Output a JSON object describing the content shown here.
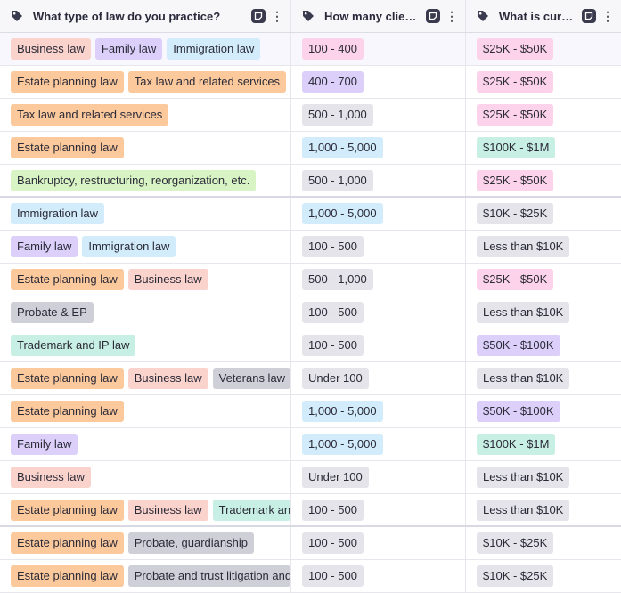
{
  "columns": [
    {
      "title": "What type of law do you practice?",
      "icon": "tag-icon"
    },
    {
      "title": "How many clients…",
      "icon": "tag-icon"
    },
    {
      "title": "What is curre…",
      "icon": "tag-icon"
    }
  ],
  "tag_colors": {
    "Business law": "#fbd3cd",
    "Family law": "#dcd0fa",
    "Immigration law": "#d3ecfb",
    "Estate planning law": "#fcc99c",
    "Tax law and related services": "#fcc99c",
    "Bankruptcy, restructuring, reorganization, etc.": "#d8f4c4",
    "Probate & EP": "#cfcfd8",
    "Trademark and IP law": "#c7efe4",
    "Veterans law": "#cfcfd8",
    "Trademark and IP law (truncated)": "#c7efe4",
    "Probate, guardianship": "#cfcfd8",
    "Probate and trust litigation and": "#cfcfd8",
    "100 - 400": "#fcd3ea",
    "400 - 700": "#dcd0fa",
    "500 - 1,000": "#e4e4ea",
    "1,000 - 5,000": "#d3ecfb",
    "100 - 500": "#e4e4ea",
    "Under 100": "#e4e4ea",
    "$25K - $50K": "#fcd3ea",
    "$100K - $1M": "#c7efe4",
    "$10K - $25K": "#e4e4ea",
    "Less than $10K": "#e4e4ea",
    "$50K - $100K": "#dcd0fa"
  },
  "rows": [
    [
      [
        "Business law",
        "Family law",
        "Immigration law"
      ],
      [
        "100 - 400"
      ],
      [
        "$25K - $50K"
      ]
    ],
    [
      [
        "Estate planning law",
        "Tax law and related services"
      ],
      [
        "400 - 700"
      ],
      [
        "$25K - $50K"
      ]
    ],
    [
      [
        "Tax law and related services"
      ],
      [
        "500 - 1,000"
      ],
      [
        "$25K - $50K"
      ]
    ],
    [
      [
        "Estate planning law"
      ],
      [
        "1,000 - 5,000"
      ],
      [
        "$100K - $1M"
      ]
    ],
    [
      [
        "Bankruptcy, restructuring, reorganization, etc."
      ],
      [
        "500 - 1,000"
      ],
      [
        "$25K - $50K"
      ]
    ],
    [
      [
        "Immigration law"
      ],
      [
        "1,000 - 5,000"
      ],
      [
        "$10K - $25K"
      ]
    ],
    [
      [
        "Family law",
        "Immigration law"
      ],
      [
        "100 - 500"
      ],
      [
        "Less than $10K"
      ]
    ],
    [
      [
        "Estate planning law",
        "Business law"
      ],
      [
        "500 - 1,000"
      ],
      [
        "$25K - $50K"
      ]
    ],
    [
      [
        "Probate & EP"
      ],
      [
        "100 - 500"
      ],
      [
        "Less than $10K"
      ]
    ],
    [
      [
        "Trademark and IP law"
      ],
      [
        "100 - 500"
      ],
      [
        "$50K - $100K"
      ]
    ],
    [
      [
        "Estate planning law",
        "Business law",
        "Veterans law"
      ],
      [
        "Under 100"
      ],
      [
        "Less than $10K"
      ]
    ],
    [
      [
        "Estate planning law"
      ],
      [
        "1,000 - 5,000"
      ],
      [
        "$50K - $100K"
      ]
    ],
    [
      [
        "Family law"
      ],
      [
        "1,000 - 5,000"
      ],
      [
        "$100K - $1M"
      ]
    ],
    [
      [
        "Business law"
      ],
      [
        "Under 100"
      ],
      [
        "Less than $10K"
      ]
    ],
    [
      [
        "Estate planning law",
        "Business law",
        "Trademark and IP law"
      ],
      [
        "100 - 500"
      ],
      [
        "Less than $10K"
      ]
    ],
    [
      [
        "Estate planning law",
        "Probate, guardianship"
      ],
      [
        "100 - 500"
      ],
      [
        "$10K - $25K"
      ]
    ],
    [
      [
        "Estate planning law",
        "Probate and trust litigation and"
      ],
      [
        "100 - 500"
      ],
      [
        "$10K - $25K"
      ]
    ]
  ],
  "group_breaks": [
    4,
    14
  ],
  "selected_row": 0
}
